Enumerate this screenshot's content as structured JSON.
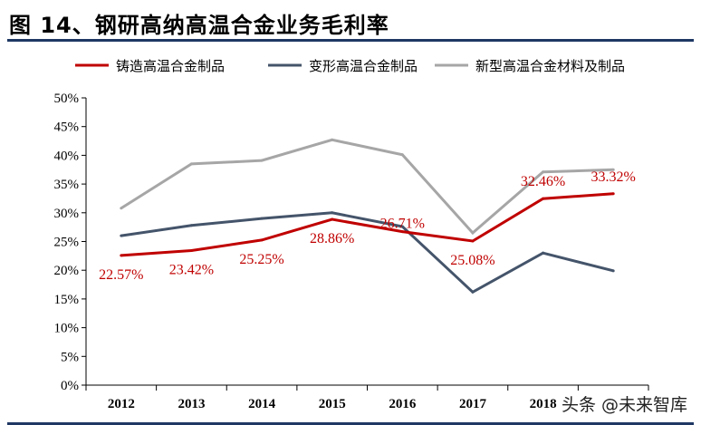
{
  "title": "图 14、钢研高纳高温合金业务毛利率",
  "watermark": "头条 @未来智库",
  "chart_data": {
    "type": "line",
    "categories": [
      "2012",
      "2013",
      "2014",
      "2015",
      "2016",
      "2017",
      "2018",
      ""
    ],
    "ylim": [
      0,
      50
    ],
    "yticks": [
      "0%",
      "5%",
      "10%",
      "15%",
      "20%",
      "25%",
      "30%",
      "35%",
      "40%",
      "45%",
      "50%"
    ],
    "grid": false,
    "legend": "top",
    "series": [
      {
        "name": "铸造高温合金制品",
        "color": "#c00000",
        "values": [
          22.57,
          23.42,
          25.25,
          28.86,
          26.71,
          25.08,
          32.46,
          33.32
        ],
        "labels": [
          "22.57%",
          "23.42%",
          "25.25%",
          "28.86%",
          "26.71%",
          "25.08%",
          "32.46%",
          "33.32%"
        ]
      },
      {
        "name": "变形高温合金制品",
        "color": "#44546a",
        "values": [
          26.0,
          27.8,
          29.0,
          30.0,
          27.6,
          16.2,
          23.0,
          19.9
        ]
      },
      {
        "name": "新型高温合金材料及制品",
        "color": "#a6a6a6",
        "values": [
          30.8,
          38.5,
          39.1,
          42.7,
          40.1,
          26.5,
          37.1,
          37.5
        ]
      }
    ]
  }
}
